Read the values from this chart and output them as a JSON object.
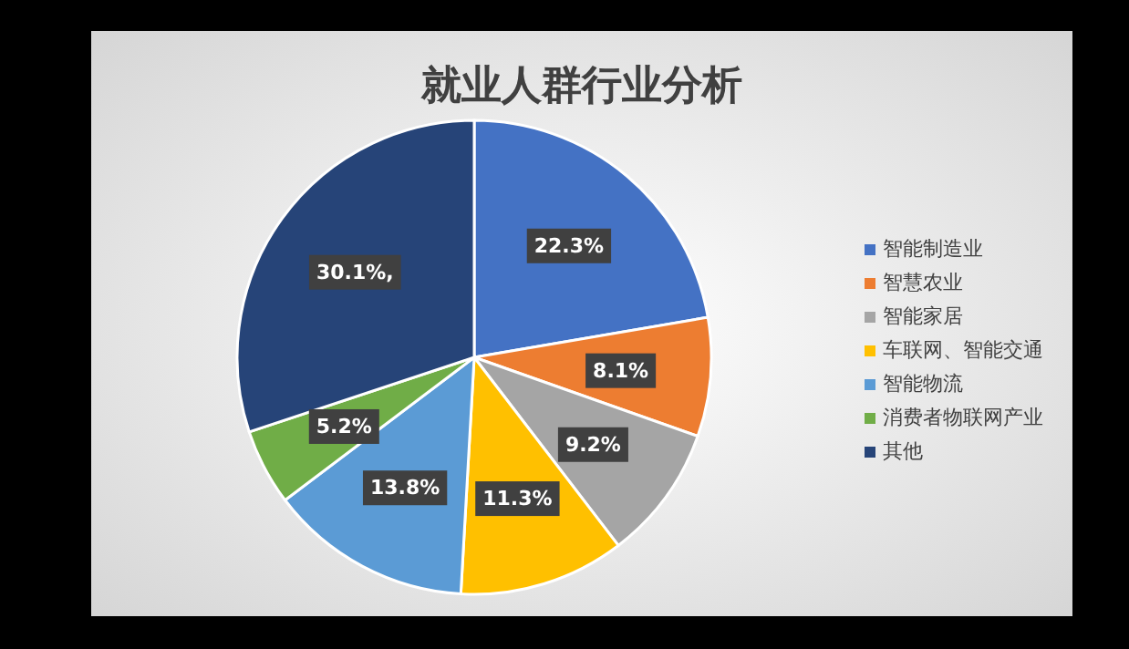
{
  "chart_data": {
    "type": "pie",
    "title": "就业人群行业分析",
    "categories": [
      "智能制造业",
      "智慧农业",
      "智能家居",
      "车联网、智能交通",
      "智能物流",
      "消费者物联网产业",
      "其他"
    ],
    "values": [
      22.3,
      8.1,
      9.2,
      11.3,
      13.8,
      5.2,
      30.1
    ],
    "colors": [
      "#4472c4",
      "#ed7d31",
      "#a5a5a5",
      "#ffc000",
      "#5b9bd5",
      "#70ad47",
      "#264478"
    ],
    "value_labels": [
      "22.3%",
      "8.1%",
      "9.2%",
      "11.3%",
      "13.8%",
      "5.2%",
      "30.1%,"
    ],
    "legend": "right"
  }
}
